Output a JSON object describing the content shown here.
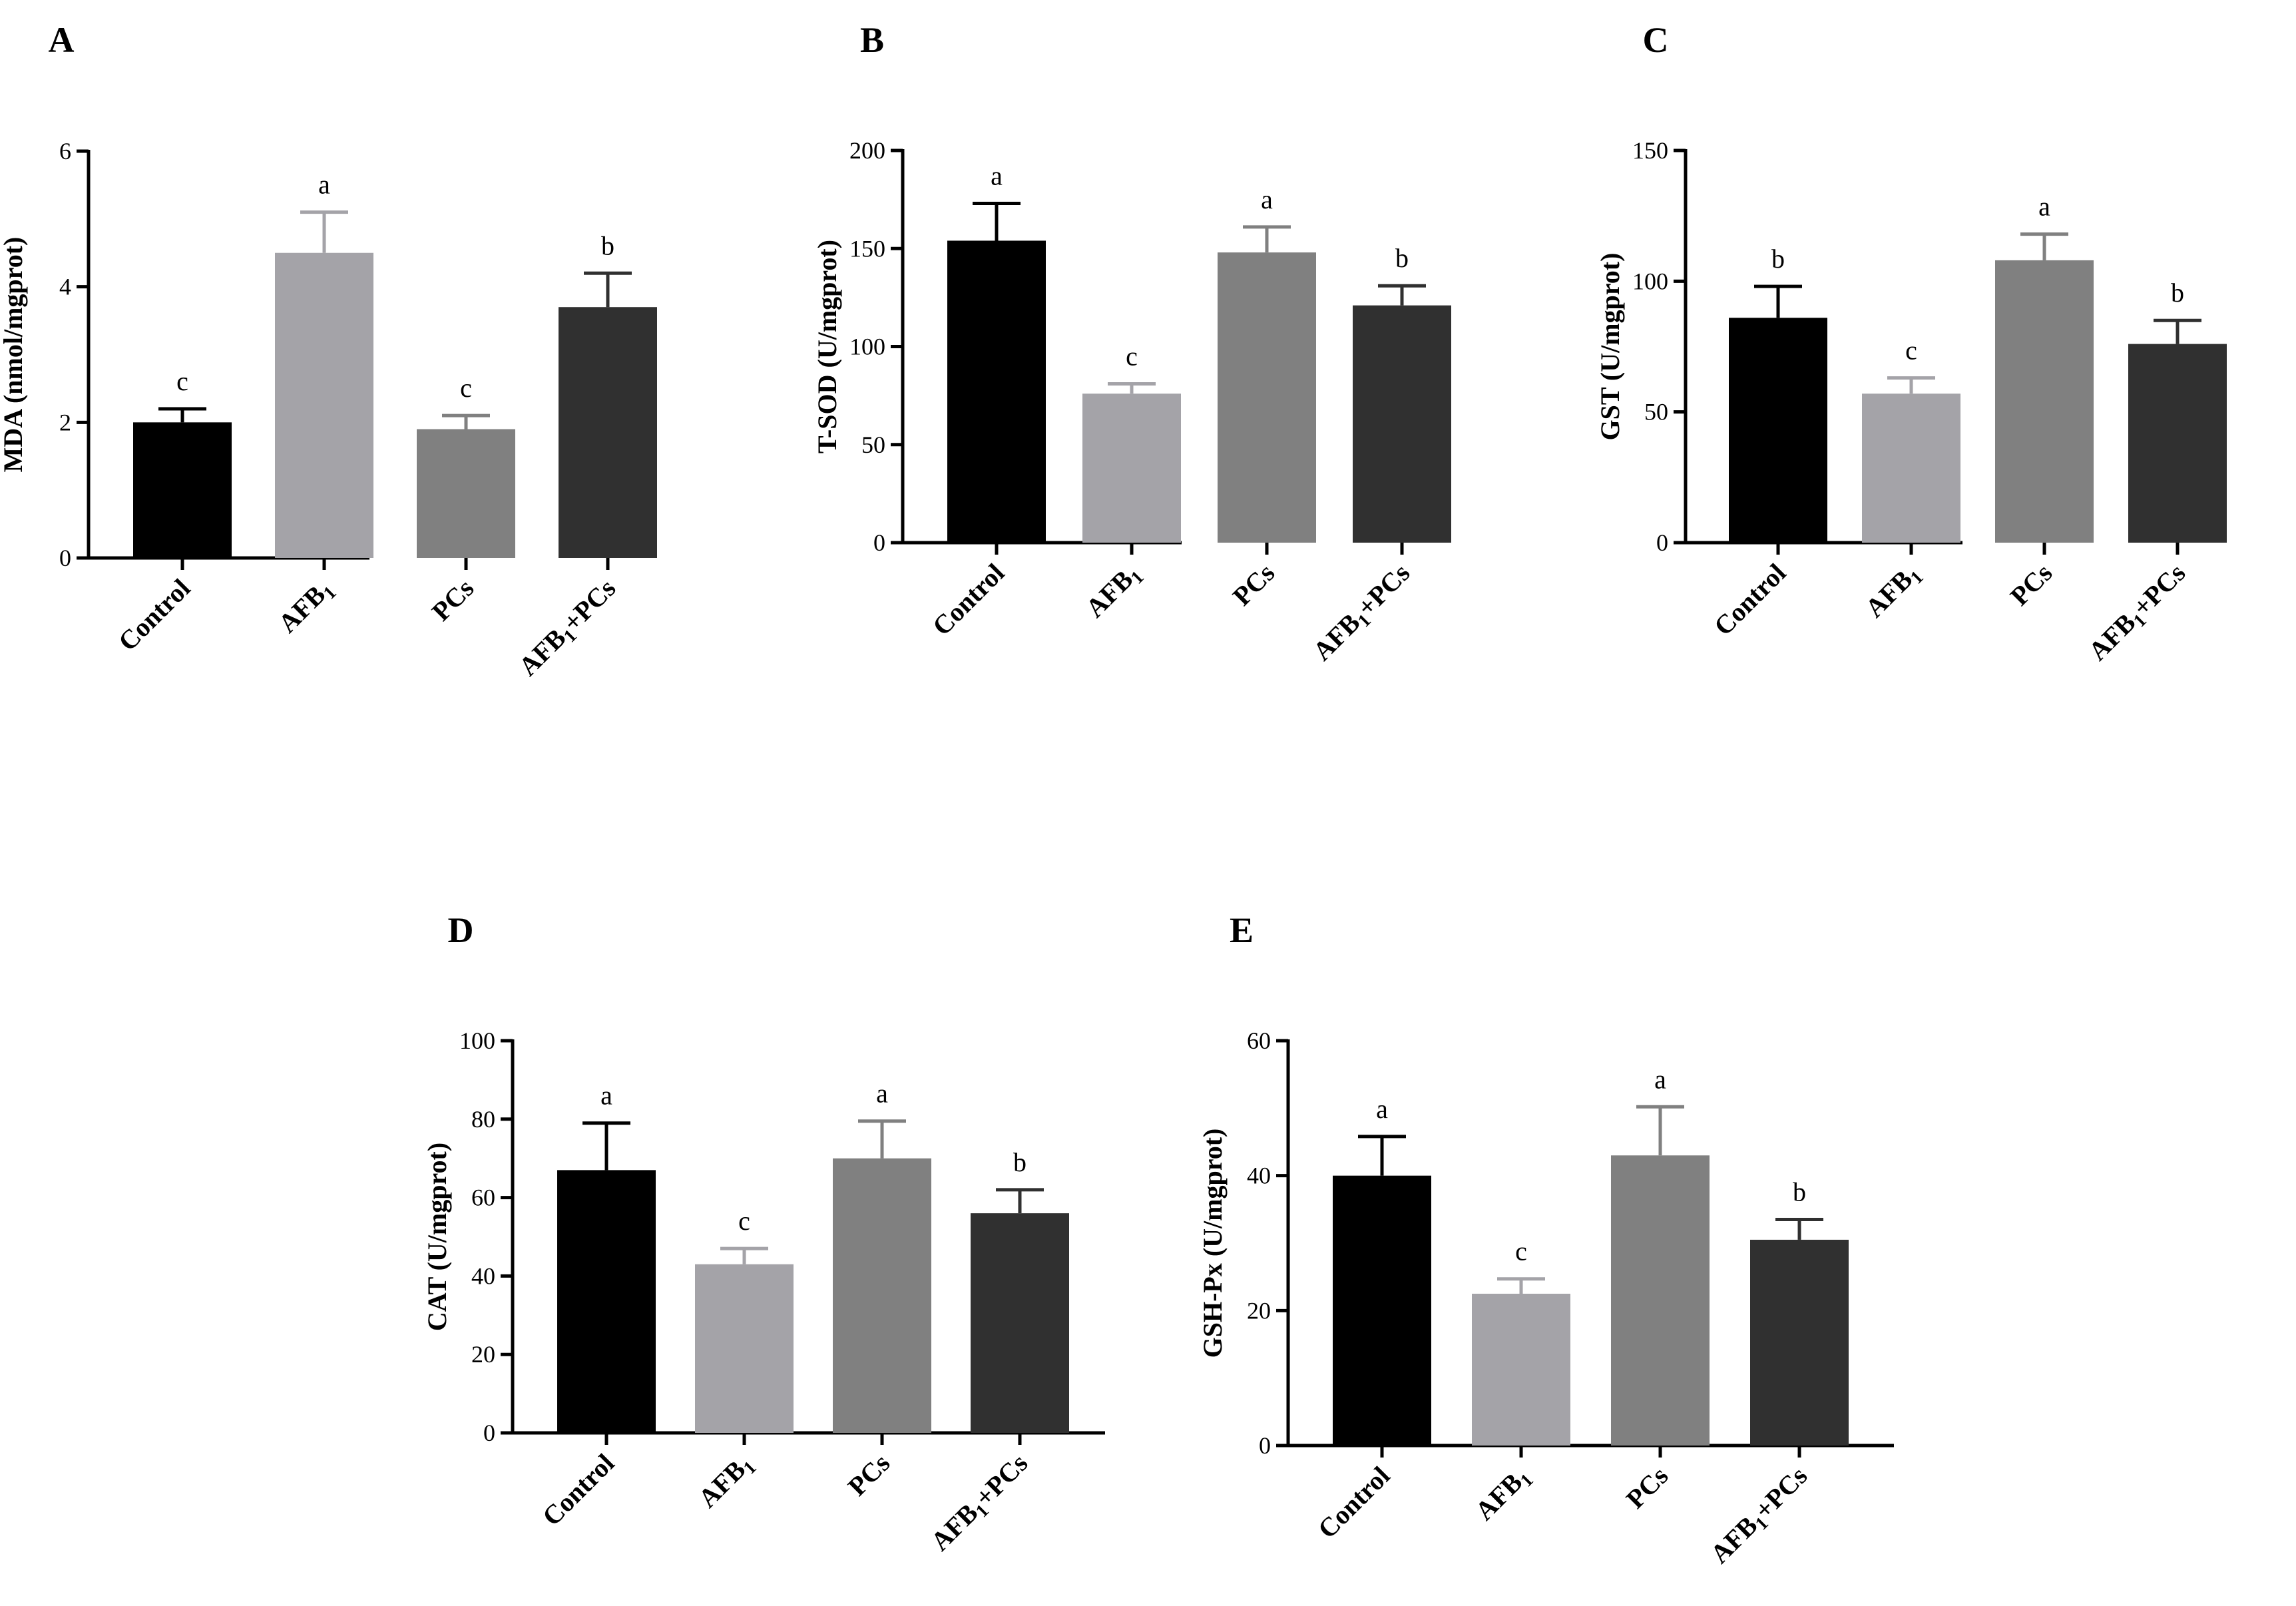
{
  "chart_data": [
    {
      "type": "bar",
      "panel": "A",
      "title": "",
      "xlabel": "",
      "ylabel": "MDA (nmol/mgprot)",
      "ylim": [
        0,
        6
      ],
      "yticks": [
        "0",
        "2",
        "4",
        "6"
      ],
      "categories": [
        "Control",
        "AFB1",
        "PCs",
        "AFB1+PCs"
      ],
      "values": [
        2.0,
        4.5,
        1.9,
        3.7
      ],
      "errors": [
        0.2,
        0.6,
        0.2,
        0.5
      ],
      "significance": [
        "c",
        "a",
        "c",
        "b"
      ],
      "colors": [
        "#000000",
        "#a4a3a8",
        "#808080",
        "#303030"
      ]
    },
    {
      "type": "bar",
      "panel": "B",
      "title": "",
      "xlabel": "",
      "ylabel": "T-SOD (U/mgprot)",
      "ylim": [
        0,
        200
      ],
      "yticks": [
        "0",
        "50",
        "100",
        "150",
        "200"
      ],
      "categories": [
        "Control",
        "AFB1",
        "PCs",
        "AFB1+PCs"
      ],
      "values": [
        154,
        76,
        148,
        121
      ],
      "errors": [
        19,
        5,
        13,
        10
      ],
      "significance": [
        "a",
        "c",
        "a",
        "b"
      ],
      "colors": [
        "#000000",
        "#a4a3a8",
        "#808080",
        "#303030"
      ]
    },
    {
      "type": "bar",
      "panel": "C",
      "title": "",
      "xlabel": "",
      "ylabel": "GST (U/mgprot)",
      "ylim": [
        0,
        150
      ],
      "yticks": [
        "0",
        "50",
        "100",
        "150"
      ],
      "categories": [
        "Control",
        "AFB1",
        "PCs",
        "AFB1+PCs"
      ],
      "values": [
        86,
        57,
        108,
        76
      ],
      "errors": [
        12,
        6,
        10,
        9
      ],
      "significance": [
        "b",
        "c",
        "a",
        "b"
      ],
      "colors": [
        "#000000",
        "#a4a3a8",
        "#808080",
        "#303030"
      ]
    },
    {
      "type": "bar",
      "panel": "D",
      "title": "",
      "xlabel": "",
      "ylabel": "CAT (U/mgprot)",
      "ylim": [
        0,
        100
      ],
      "yticks": [
        "0",
        "20",
        "40",
        "60",
        "80",
        "100"
      ],
      "categories": [
        "Control",
        "AFB1",
        "PCs",
        "AFB1+PCs"
      ],
      "values": [
        67,
        43,
        70,
        56
      ],
      "errors": [
        12,
        4,
        9.5,
        6
      ],
      "significance": [
        "a",
        "c",
        "a",
        "b"
      ],
      "colors": [
        "#000000",
        "#a4a3a8",
        "#808080",
        "#303030"
      ]
    },
    {
      "type": "bar",
      "panel": "E",
      "title": "",
      "xlabel": "",
      "ylabel": "GSH-Px (U/mgprot)",
      "ylim": [
        0,
        60
      ],
      "yticks": [
        "0",
        "20",
        "40",
        "60"
      ],
      "categories": [
        "Control",
        "AFB1",
        "PCs",
        "AFB1+PCs"
      ],
      "values": [
        40,
        22.5,
        43,
        30.5
      ],
      "errors": [
        5.8,
        2.2,
        7.2,
        3
      ],
      "significance": [
        "a",
        "c",
        "a",
        "b"
      ],
      "colors": [
        "#000000",
        "#a4a3a8",
        "#808080",
        "#303030"
      ]
    }
  ]
}
